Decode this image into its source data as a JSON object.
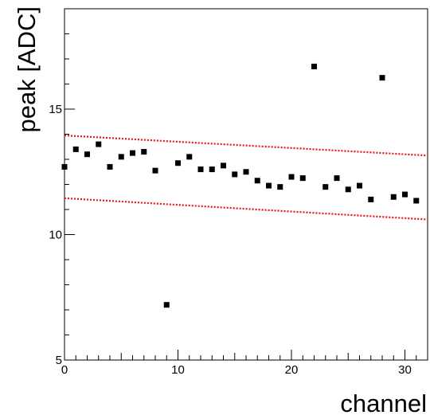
{
  "chart_data": {
    "type": "scatter",
    "xlabel": "channel",
    "ylabel": "peak [ADC]",
    "xlim": [
      0,
      32
    ],
    "ylim": [
      5,
      19
    ],
    "x_ticks": [
      0,
      10,
      20,
      30
    ],
    "y_ticks": [
      5,
      10,
      15
    ],
    "x_tick_labels": [
      "0",
      "10",
      "20",
      "30"
    ],
    "y_tick_labels": [
      "5",
      "10",
      "15"
    ],
    "grid": false,
    "marker_color": "#000000",
    "series": [
      {
        "x": [
          0,
          1,
          2,
          3,
          4,
          5,
          6,
          7,
          8,
          9,
          10,
          11,
          12,
          13,
          14,
          15,
          16,
          17,
          18,
          19,
          20,
          21,
          22,
          23,
          24,
          25,
          26,
          27,
          28,
          29,
          30,
          31
        ],
        "values": [
          12.7,
          13.4,
          13.2,
          13.6,
          12.7,
          13.1,
          13.25,
          13.3,
          12.55,
          7.2,
          12.85,
          13.1,
          12.6,
          12.6,
          12.75,
          12.4,
          12.5,
          12.15,
          11.95,
          11.9,
          12.3,
          12.25,
          16.7,
          11.9,
          12.25,
          11.8,
          11.95,
          11.4,
          16.25,
          11.5,
          11.6,
          11.35
        ]
      }
    ],
    "limit_lines": {
      "color": "#e8131b",
      "style": "dotted",
      "lines": [
        {
          "x": [
            0,
            32
          ],
          "y": [
            13.95,
            13.15
          ]
        },
        {
          "x": [
            0,
            32
          ],
          "y": [
            11.45,
            10.6
          ]
        }
      ]
    }
  }
}
